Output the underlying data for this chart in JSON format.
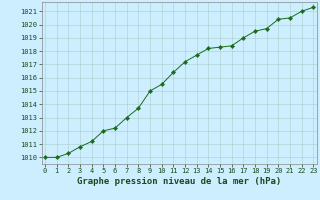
{
  "x": [
    0,
    1,
    2,
    3,
    4,
    5,
    6,
    7,
    8,
    9,
    10,
    11,
    12,
    13,
    14,
    15,
    16,
    17,
    18,
    19,
    20,
    21,
    22,
    23
  ],
  "y": [
    1010.0,
    1010.0,
    1010.3,
    1010.8,
    1011.2,
    1012.0,
    1012.2,
    1013.0,
    1013.7,
    1015.0,
    1015.5,
    1016.4,
    1017.2,
    1017.7,
    1018.2,
    1018.3,
    1018.4,
    1019.0,
    1019.5,
    1019.7,
    1020.4,
    1020.5,
    1021.0,
    1021.3
  ],
  "line_color": "#1a6b1a",
  "marker": "D",
  "marker_size": 2.2,
  "bg_color": "#cceeff",
  "grid_color": "#aacccc",
  "xlabel": "Graphe pression niveau de la mer (hPa)",
  "ylim_min": 1009.5,
  "ylim_max": 1021.7,
  "xlim_min": -0.3,
  "xlim_max": 23.3,
  "yticks": [
    1010,
    1011,
    1012,
    1013,
    1014,
    1015,
    1016,
    1017,
    1018,
    1019,
    1020,
    1021
  ],
  "xticks": [
    0,
    1,
    2,
    3,
    4,
    5,
    6,
    7,
    8,
    9,
    10,
    11,
    12,
    13,
    14,
    15,
    16,
    17,
    18,
    19,
    20,
    21,
    22,
    23
  ],
  "tick_fontsize": 5.0,
  "xlabel_fontsize": 6.5,
  "xlabel_fontweight": "bold"
}
